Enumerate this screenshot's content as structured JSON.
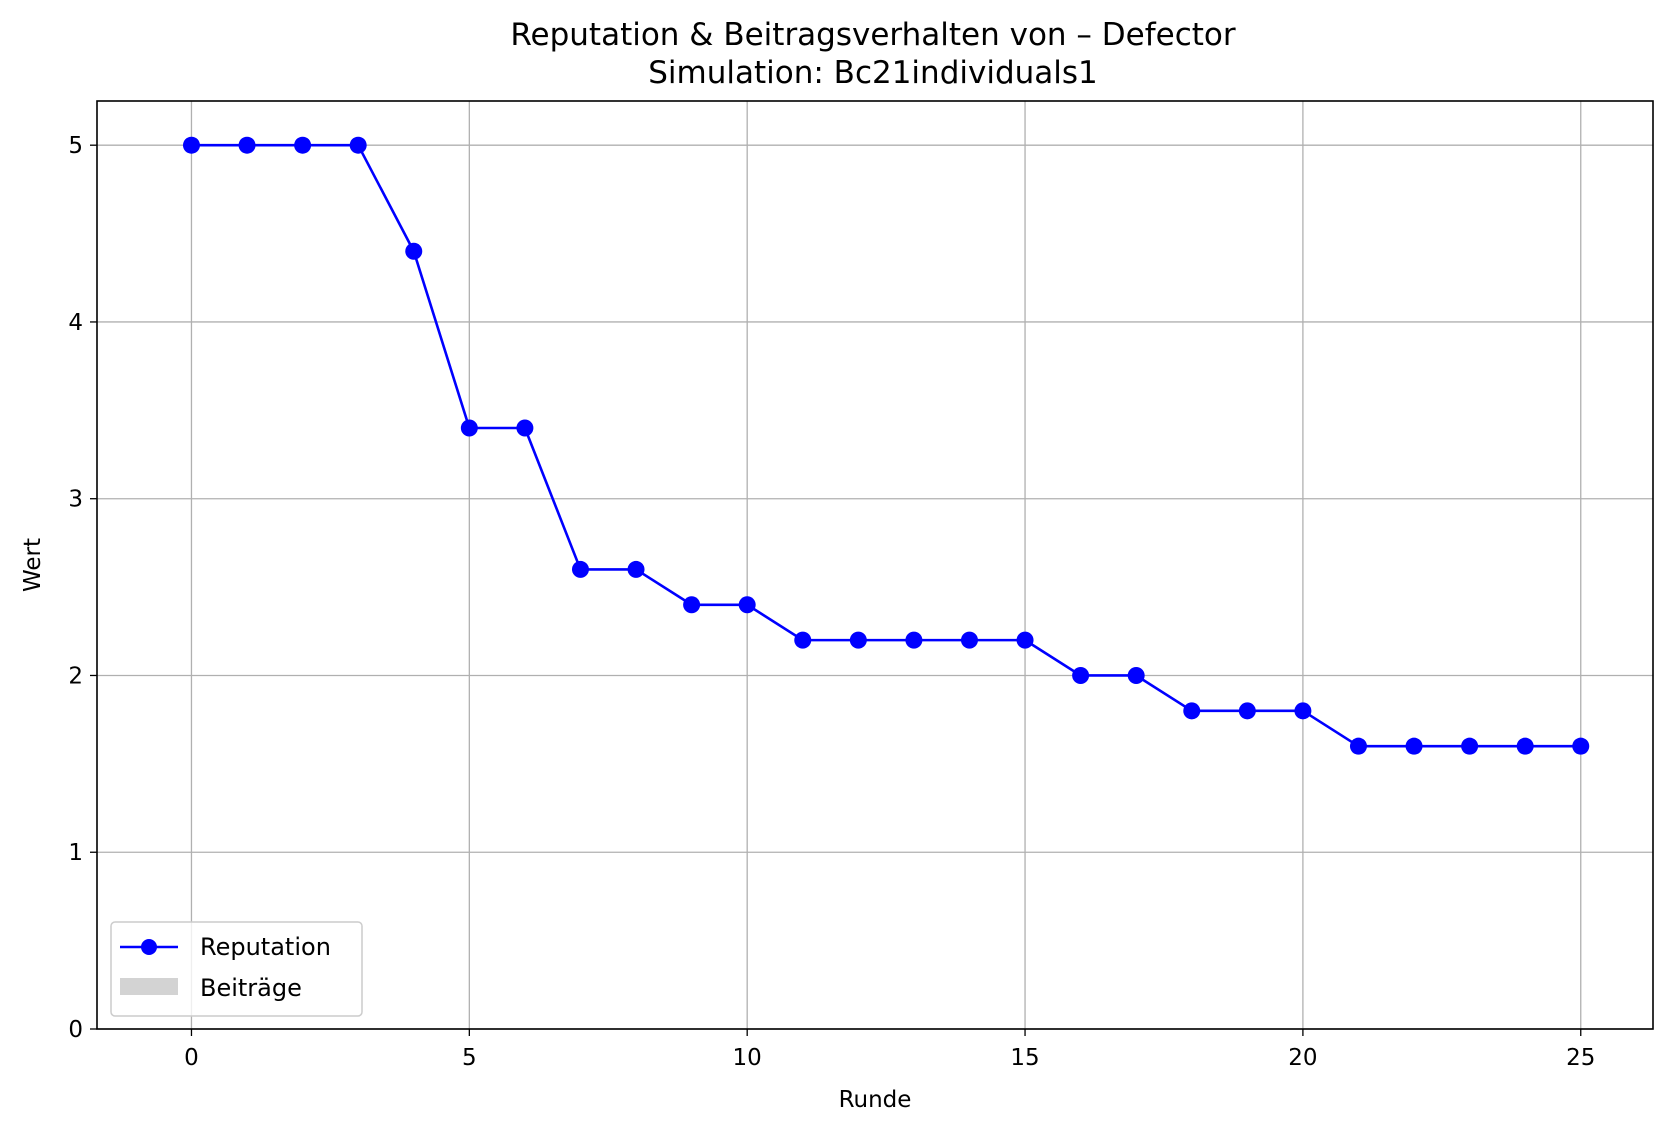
{
  "chart_data": {
    "type": "line",
    "title": "Reputation & Beitragsverhalten von – Defector",
    "subtitle": "Simulation: Bc21individuals1",
    "xlabel": "Runde",
    "ylabel": "Wert",
    "xlim": [
      -1.7,
      26.3
    ],
    "ylim": [
      0,
      5.25
    ],
    "xticks": [
      0,
      5,
      10,
      15,
      20,
      25
    ],
    "yticks": [
      0,
      1,
      2,
      3,
      4,
      5
    ],
    "xtick_labels": [
      "0",
      "5",
      "10",
      "15",
      "20",
      "25"
    ],
    "ytick_labels": [
      "0",
      "1",
      "2",
      "3",
      "4",
      "5"
    ],
    "grid": true,
    "legend_position": "lower-left",
    "series": [
      {
        "name": "Reputation",
        "color": "#0000ff",
        "marker": "circle",
        "x": [
          0,
          1,
          2,
          3,
          4,
          5,
          6,
          7,
          8,
          9,
          10,
          11,
          12,
          13,
          14,
          15,
          16,
          17,
          18,
          19,
          20,
          21,
          22,
          23,
          24,
          25
        ],
        "values": [
          5.0,
          5.0,
          5.0,
          5.0,
          4.4,
          3.4,
          3.4,
          2.6,
          2.6,
          2.4,
          2.4,
          2.2,
          2.2,
          2.2,
          2.2,
          2.2,
          2.0,
          2.0,
          1.8,
          1.8,
          1.8,
          1.6,
          1.6,
          1.6,
          1.6,
          1.6
        ]
      },
      {
        "name": "Beiträge",
        "color": "#d3d3d3",
        "type": "bar",
        "x": [],
        "values": []
      }
    ]
  }
}
